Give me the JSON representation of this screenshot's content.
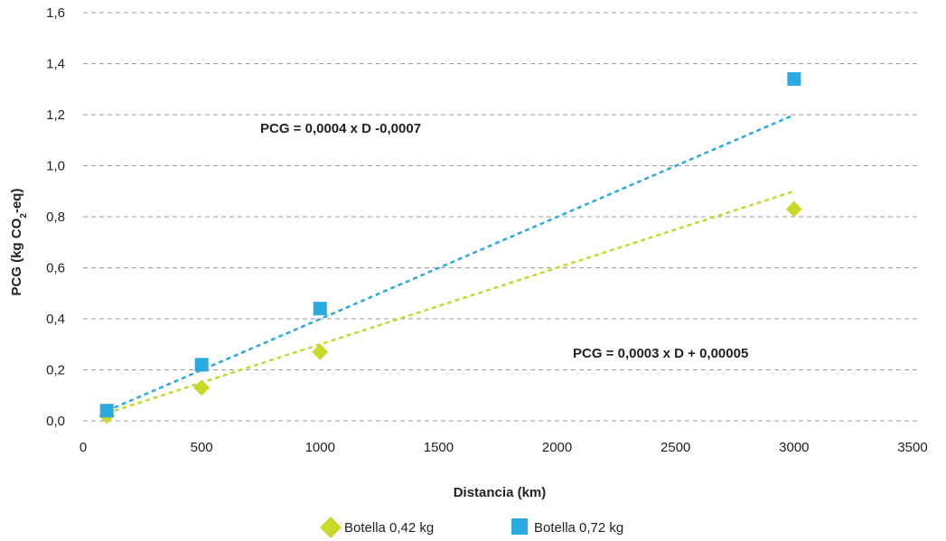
{
  "chart_data": {
    "type": "scatter",
    "xlabel": "Distancia (km)",
    "ylabel_main": "PCG (kg CO",
    "ylabel_sub": "2",
    "ylabel_end": "-eq)",
    "xlim": [
      0,
      3500
    ],
    "ylim": [
      0,
      1.6
    ],
    "xticks": [
      0,
      500,
      1000,
      1500,
      2000,
      2500,
      3000,
      3500
    ],
    "xtick_labels": [
      "0",
      "500",
      "1000",
      "1500",
      "2000",
      "2500",
      "3000",
      "3500"
    ],
    "yticks": [
      0,
      0.2,
      0.4,
      0.6,
      0.8,
      1.0,
      1.2,
      1.4,
      1.6
    ],
    "ytick_labels": [
      "0,0",
      "0,2",
      "0,4",
      "0,6",
      "0,8",
      "1,0",
      "1,2",
      "1,4",
      "1,6"
    ],
    "grid": "horizontal dashed",
    "legend_position": "bottom",
    "series": [
      {
        "name": "Botella 0,42 kg",
        "marker": "diamond",
        "color": "#c8d92c",
        "x": [
          100,
          500,
          1000,
          3000
        ],
        "y": [
          0.02,
          0.13,
          0.27,
          0.83
        ],
        "trendline": {
          "slope": 0.0003,
          "intercept": 5e-05,
          "label": "PCG = 0,0003 x D + 0,00005"
        }
      },
      {
        "name": "Botella 0,72 kg",
        "marker": "square",
        "color": "#29abe2",
        "x": [
          100,
          500,
          1000,
          3000
        ],
        "y": [
          0.04,
          0.22,
          0.44,
          1.34
        ],
        "trendline": {
          "slope": 0.0004,
          "intercept": -0.0007,
          "label": "PCG = 0,0004 x D -0,0007"
        }
      }
    ]
  }
}
